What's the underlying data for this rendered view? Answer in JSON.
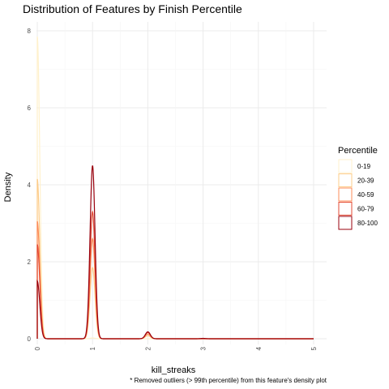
{
  "chart_data": {
    "type": "line",
    "title": "Distribution of Features by Finish Percentile",
    "xlabel": "kill_streaks",
    "ylabel": "Density",
    "caption": "* Removed outliers (> 99th percentile) from this feature's density plot",
    "xlim": [
      0,
      5
    ],
    "ylim": [
      0,
      8.3
    ],
    "x_ticks": [
      "0",
      "1",
      "2",
      "3",
      "4",
      "5"
    ],
    "y_ticks": [
      "0",
      "2",
      "4",
      "6",
      "8"
    ],
    "grid": true,
    "legend": {
      "title": "Percentile",
      "placement": "right"
    },
    "series": [
      {
        "name": "0-19",
        "color": "#fff1cc",
        "peaks": [
          {
            "x": 0,
            "y": 7.85
          },
          {
            "x": 1,
            "y": 0.02
          },
          {
            "x": 2,
            "y": 0.0
          }
        ]
      },
      {
        "name": "20-39",
        "color": "#fdcc8a",
        "peaks": [
          {
            "x": 0,
            "y": 4.15
          },
          {
            "x": 1,
            "y": 1.85
          },
          {
            "x": 2,
            "y": 0.08
          }
        ]
      },
      {
        "name": "40-59",
        "color": "#fc8d59",
        "peaks": [
          {
            "x": 0,
            "y": 3.05
          },
          {
            "x": 1,
            "y": 2.6
          },
          {
            "x": 2,
            "y": 0.12
          }
        ]
      },
      {
        "name": "60-79",
        "color": "#e34a33",
        "peaks": [
          {
            "x": 0,
            "y": 2.45
          },
          {
            "x": 1,
            "y": 3.3
          },
          {
            "x": 2,
            "y": 0.16
          }
        ]
      },
      {
        "name": "80-100",
        "color": "#99000d",
        "peaks": [
          {
            "x": 0,
            "y": 1.5
          },
          {
            "x": 1,
            "y": 4.5
          },
          {
            "x": 2,
            "y": 0.18
          },
          {
            "x": 3,
            "y": 0.01
          }
        ]
      }
    ]
  }
}
